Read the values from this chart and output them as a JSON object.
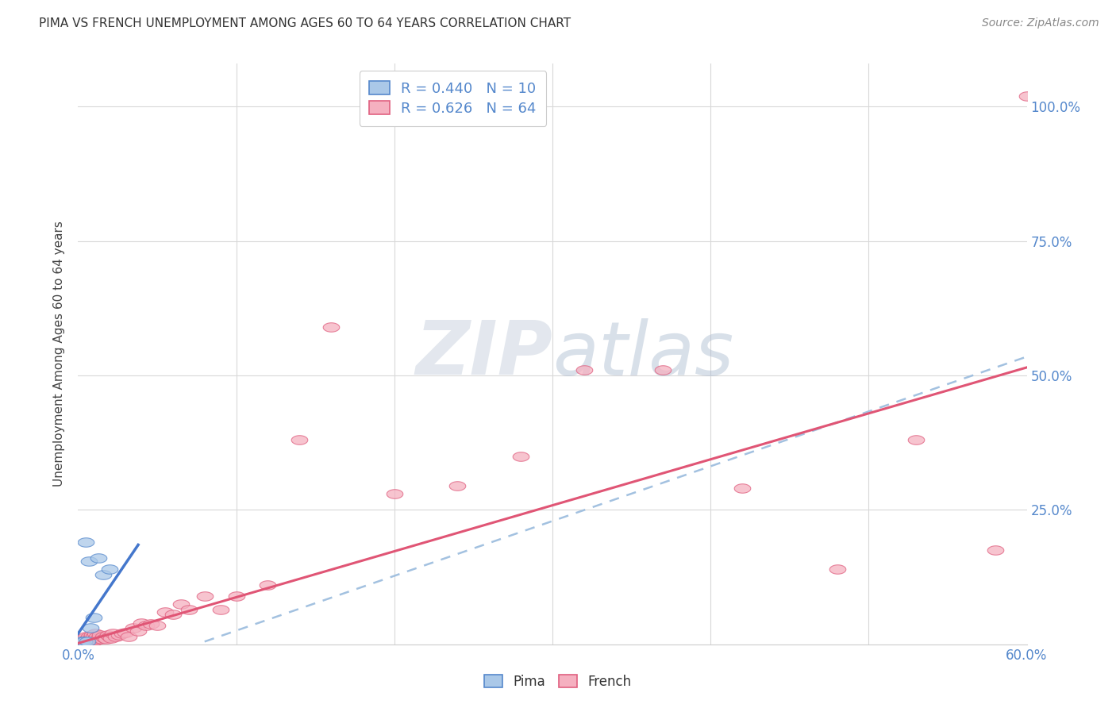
{
  "title": "PIMA VS FRENCH UNEMPLOYMENT AMONG AGES 60 TO 64 YEARS CORRELATION CHART",
  "source": "Source: ZipAtlas.com",
  "ylabel": "Unemployment Among Ages 60 to 64 years",
  "xlim": [
    0.0,
    0.6
  ],
  "ylim": [
    0.0,
    1.08
  ],
  "pima_color": "#aac8e8",
  "french_color": "#f5b0c0",
  "pima_edge_color": "#5588cc",
  "french_edge_color": "#e06080",
  "pima_line_color": "#4477cc",
  "french_line_color": "#e05575",
  "dashed_line_color": "#99bbdd",
  "legend_label_pima": "R = 0.440   N = 10",
  "legend_label_french": "R = 0.626   N = 64",
  "background_color": "#ffffff",
  "grid_color": "#d8d8d8",
  "title_color": "#333333",
  "tick_label_color": "#5588cc",
  "watermark_color": "#ccd8e8",
  "pima_x": [
    0.002,
    0.004,
    0.005,
    0.006,
    0.007,
    0.008,
    0.01,
    0.013,
    0.016,
    0.02
  ],
  "pima_y": [
    0.005,
    0.005,
    0.19,
    0.005,
    0.155,
    0.03,
    0.05,
    0.16,
    0.13,
    0.14
  ],
  "french_x": [
    0.001,
    0.002,
    0.002,
    0.003,
    0.003,
    0.004,
    0.004,
    0.005,
    0.005,
    0.006,
    0.006,
    0.007,
    0.007,
    0.008,
    0.008,
    0.009,
    0.009,
    0.01,
    0.01,
    0.011,
    0.011,
    0.012,
    0.012,
    0.013,
    0.014,
    0.015,
    0.016,
    0.017,
    0.018,
    0.019,
    0.02,
    0.021,
    0.022,
    0.024,
    0.026,
    0.028,
    0.03,
    0.032,
    0.035,
    0.038,
    0.04,
    0.043,
    0.046,
    0.05,
    0.055,
    0.06,
    0.065,
    0.07,
    0.08,
    0.09,
    0.1,
    0.12,
    0.14,
    0.16,
    0.2,
    0.24,
    0.28,
    0.32,
    0.37,
    0.42,
    0.48,
    0.53,
    0.58,
    0.6
  ],
  "french_y": [
    0.005,
    0.003,
    0.008,
    0.005,
    0.01,
    0.004,
    0.012,
    0.006,
    0.015,
    0.005,
    0.01,
    0.008,
    0.015,
    0.005,
    0.012,
    0.008,
    0.018,
    0.006,
    0.015,
    0.01,
    0.02,
    0.008,
    0.015,
    0.012,
    0.018,
    0.01,
    0.015,
    0.012,
    0.01,
    0.018,
    0.015,
    0.012,
    0.02,
    0.015,
    0.018,
    0.02,
    0.022,
    0.015,
    0.03,
    0.025,
    0.04,
    0.035,
    0.038,
    0.035,
    0.06,
    0.055,
    0.075,
    0.065,
    0.09,
    0.065,
    0.09,
    0.11,
    0.38,
    0.59,
    0.28,
    0.295,
    0.35,
    0.51,
    0.51,
    0.29,
    0.14,
    0.38,
    0.175,
    1.02
  ],
  "french_line_x0": 0.0,
  "french_line_y0": 0.002,
  "french_line_x1": 0.6,
  "french_line_y1": 0.515,
  "dashed_line_x0": 0.08,
  "dashed_line_y0": 0.005,
  "dashed_line_x1": 0.6,
  "dashed_line_y1": 0.535,
  "pima_line_x0": 0.0,
  "pima_line_y0": 0.02,
  "pima_line_x1": 0.038,
  "pima_line_y1": 0.185
}
